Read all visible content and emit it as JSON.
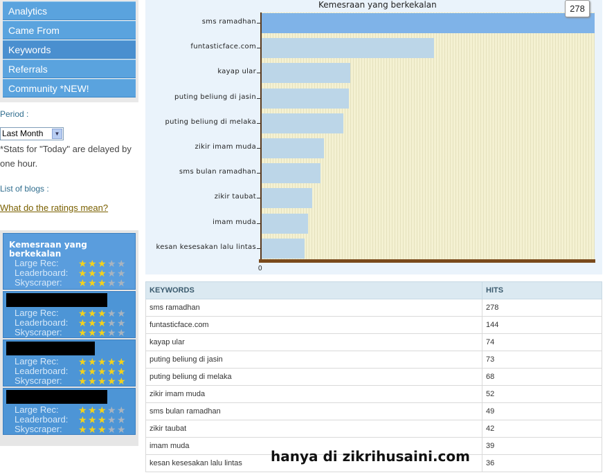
{
  "nav": [
    {
      "label": "Analytics"
    },
    {
      "label": "Came From"
    },
    {
      "label": "Keywords"
    },
    {
      "label": "Referrals"
    },
    {
      "label": "Community *NEW!"
    }
  ],
  "period": {
    "label": "Period :",
    "selected": "Last Month",
    "note": "*Stats for \"Today\" are delayed by one hour."
  },
  "blogs_label": "List of blogs :",
  "ratings_link": "What do the ratings mean?",
  "blogs": [
    {
      "name": "Kemesraan yang berkekalan",
      "redacted": false,
      "large_rec": 3,
      "leaderboard": 3,
      "skyscraper": 3
    },
    {
      "name": "",
      "redacted": true,
      "large_rec": 3,
      "leaderboard": 3,
      "skyscraper": 3
    },
    {
      "name": "",
      "redacted": true,
      "large_rec": 5,
      "leaderboard": 5,
      "skyscraper": 5
    },
    {
      "name": "",
      "redacted": true,
      "large_rec": 3,
      "leaderboard": 3,
      "skyscraper": 3
    }
  ],
  "rating_labels": {
    "large_rec": "Large Rec:",
    "leaderboard": "Leaderboard:",
    "skyscraper": "Skyscraper:"
  },
  "chart_data": {
    "type": "bar",
    "orientation": "horizontal",
    "title": "Kemesraan yang berkekalan",
    "categories": [
      "sms ramadhan",
      "funtasticface.com",
      "kayap ular",
      "puting beliung di jasin",
      "puting beliung di melaka",
      "zikir imam muda",
      "sms bulan ramadhan",
      "zikir taubat",
      "imam muda",
      "kesan kesesakan lalu lintas"
    ],
    "values": [
      278,
      144,
      74,
      73,
      68,
      52,
      49,
      42,
      39,
      36
    ],
    "xlim": [
      0,
      278
    ],
    "x_tick_labels": [
      "0"
    ],
    "tooltip_value": "278",
    "highlighted_category": "sms ramadhan"
  },
  "table": {
    "headers": [
      "KEYWORDS",
      "HITS"
    ],
    "rows": [
      [
        "sms ramadhan",
        "278"
      ],
      [
        "funtasticface.com",
        "144"
      ],
      [
        "kayap ular",
        "74"
      ],
      [
        "puting beliung di jasin",
        "73"
      ],
      [
        "puting beliung di melaka",
        "68"
      ],
      [
        "zikir imam muda",
        "52"
      ],
      [
        "sms bulan ramadhan",
        "49"
      ],
      [
        "zikir taubat",
        "42"
      ],
      [
        "imam muda",
        "39"
      ],
      [
        "kesan kesesakan lalu lintas",
        "36"
      ]
    ]
  },
  "watermark": "hanya di zikrihusaini.com"
}
